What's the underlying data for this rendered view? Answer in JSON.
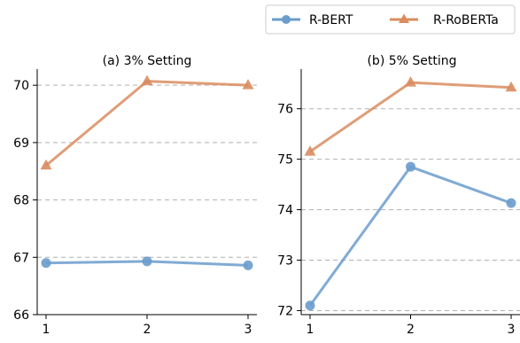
{
  "legend": {
    "items": [
      {
        "label": "R-BERT",
        "color": "#6a9ccc",
        "marker": "circle"
      },
      {
        "label": "R-RoBERTa",
        "color": "#d98c5f",
        "marker": "triangle"
      }
    ]
  },
  "chart_data": [
    {
      "type": "line",
      "title": "(a) 3% Setting",
      "x": [
        1,
        2,
        3
      ],
      "xticks": [
        "1",
        "2",
        "3"
      ],
      "ylim": [
        66,
        70.25
      ],
      "yticks": [
        66,
        67,
        68,
        69,
        70
      ],
      "grid": "horizontal dashed",
      "series": [
        {
          "name": "R-BERT",
          "values": [
            66.9,
            66.93,
            66.86
          ]
        },
        {
          "name": "R-RoBERTa",
          "values": [
            68.6,
            70.07,
            70.0
          ]
        }
      ]
    },
    {
      "type": "line",
      "title": "(b) 5% Setting",
      "x": [
        1,
        2,
        3
      ],
      "xticks": [
        "1",
        "2",
        "3"
      ],
      "ylim": [
        71.92,
        76.75
      ],
      "yticks": [
        72,
        73,
        74,
        75,
        76
      ],
      "grid": "horizontal dashed",
      "series": [
        {
          "name": "R-BERT",
          "values": [
            72.1,
            74.85,
            74.13
          ]
        },
        {
          "name": "R-RoBERTa",
          "values": [
            75.15,
            76.52,
            76.42
          ]
        }
      ]
    }
  ]
}
